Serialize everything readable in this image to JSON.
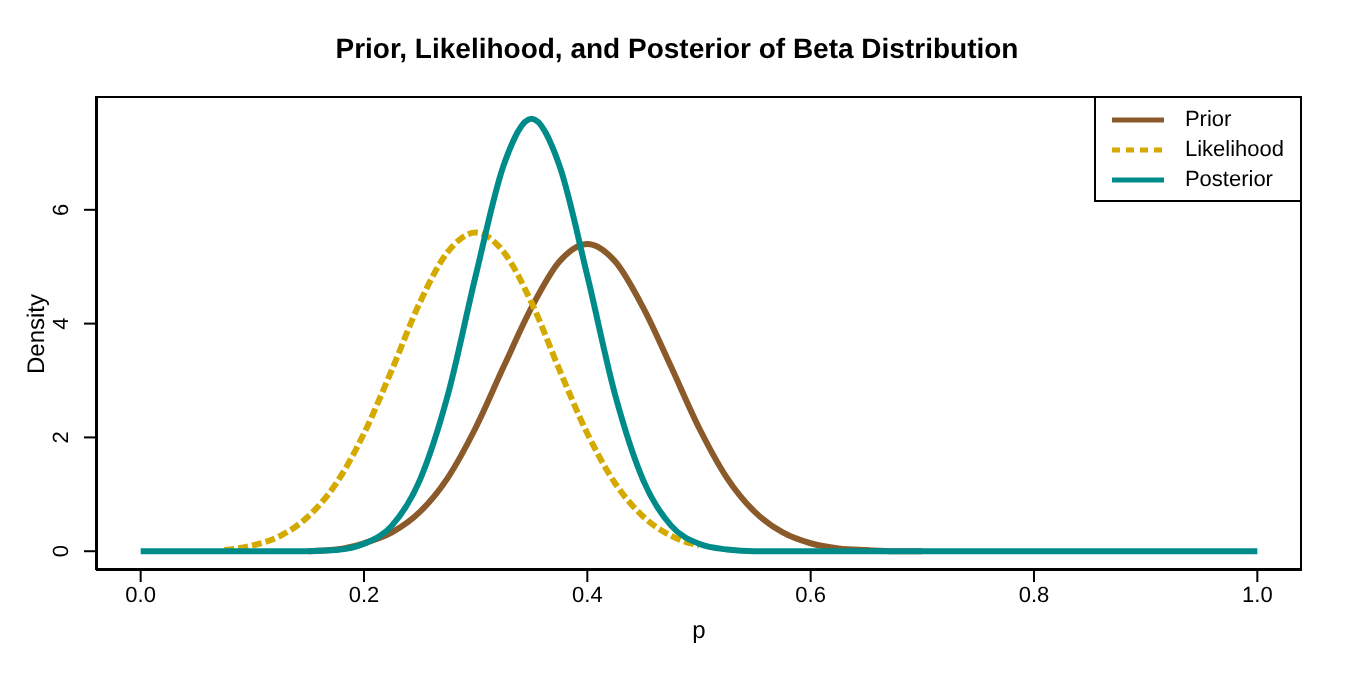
{
  "chart_data": {
    "type": "line",
    "title": "Prior, Likelihood, and Posterior of Beta Distribution",
    "xlabel": "p",
    "ylabel": "Density",
    "x": [
      0,
      0.025,
      0.05,
      0.075,
      0.1,
      0.125,
      0.15,
      0.175,
      0.2,
      0.225,
      0.25,
      0.275,
      0.3,
      0.325,
      0.35,
      0.375,
      0.4,
      0.425,
      0.45,
      0.475,
      0.5,
      0.525,
      0.55,
      0.575,
      0.6,
      0.625,
      0.65,
      0.675,
      0.7,
      0.725,
      0.75,
      0.775,
      0.8,
      0.825,
      0.85,
      0.875,
      0.9,
      0.925,
      0.95,
      0.975,
      1
    ],
    "series": [
      {
        "name": "Prior",
        "color": "#8b5a2b",
        "line_style": "solid",
        "values": [
          null,
          null,
          null,
          null,
          null,
          null,
          0,
          0.03,
          0.14,
          0.33,
          0.69,
          1.29,
          2.17,
          3.24,
          4.28,
          5.09,
          5.4,
          5.09,
          4.28,
          3.24,
          2.17,
          1.29,
          0.69,
          0.33,
          0.14,
          0.05,
          0.02,
          0,
          0,
          null,
          null,
          null,
          null,
          null,
          null,
          null,
          null,
          null,
          null,
          null,
          null
        ]
      },
      {
        "name": "Likelihood",
        "color": "#d4aa00",
        "line_style": "dashed",
        "values": [
          null,
          null,
          null,
          0.02,
          0.1,
          0.27,
          0.61,
          1.19,
          2.07,
          3.19,
          4.37,
          5.26,
          5.6,
          5.26,
          4.37,
          3.19,
          2.07,
          1.19,
          0.61,
          0.27,
          0.1,
          null,
          null,
          null,
          null,
          null,
          null,
          null,
          null,
          null,
          null,
          null,
          null,
          null,
          null,
          null,
          null,
          null,
          null,
          null,
          null
        ]
      },
      {
        "name": "Posterior",
        "color": "#008b8b",
        "line_style": "solid",
        "values": [
          0,
          0,
          0,
          0,
          0,
          0,
          0,
          0.02,
          0.13,
          0.45,
          1.25,
          2.74,
          4.84,
          6.78,
          7.6,
          6.78,
          4.84,
          2.74,
          1.25,
          0.45,
          0.13,
          0.03,
          0,
          0,
          0,
          0,
          0,
          0,
          0,
          0,
          0,
          0,
          0,
          0,
          0,
          0,
          0,
          0,
          0,
          0,
          0
        ]
      }
    ],
    "xlim": [
      -0.04,
      1.04
    ],
    "xticks": [
      {
        "value": 0,
        "label": "0.0"
      },
      0.2,
      0.4,
      0.6,
      0.8,
      {
        "value": 1,
        "label": "1.0"
      }
    ],
    "ylim": [
      -0.33,
      8
    ],
    "yticks": [
      0,
      2,
      4,
      6
    ],
    "grid": false,
    "legend": "top right",
    "marker": "none"
  }
}
